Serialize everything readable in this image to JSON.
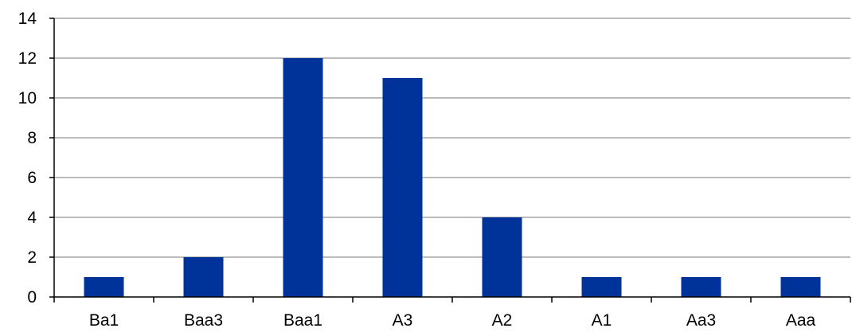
{
  "chart_data": {
    "type": "bar",
    "categories": [
      "Ba1",
      "Baa3",
      "Baa1",
      "A3",
      "A2",
      "A1",
      "Aa3",
      "Aaa"
    ],
    "values": [
      1,
      2,
      12,
      11,
      4,
      1,
      1,
      1
    ],
    "title": "",
    "xlabel": "",
    "ylabel": "",
    "ylim": [
      0,
      14
    ],
    "yticks": [
      "0",
      "2",
      "4",
      "6",
      "8",
      "10",
      "12",
      "14"
    ],
    "grid": "horizontal",
    "legend": "none",
    "colors": {
      "bar": "#003399",
      "grid": "#a6a6a6",
      "axis": "#000000"
    }
  }
}
